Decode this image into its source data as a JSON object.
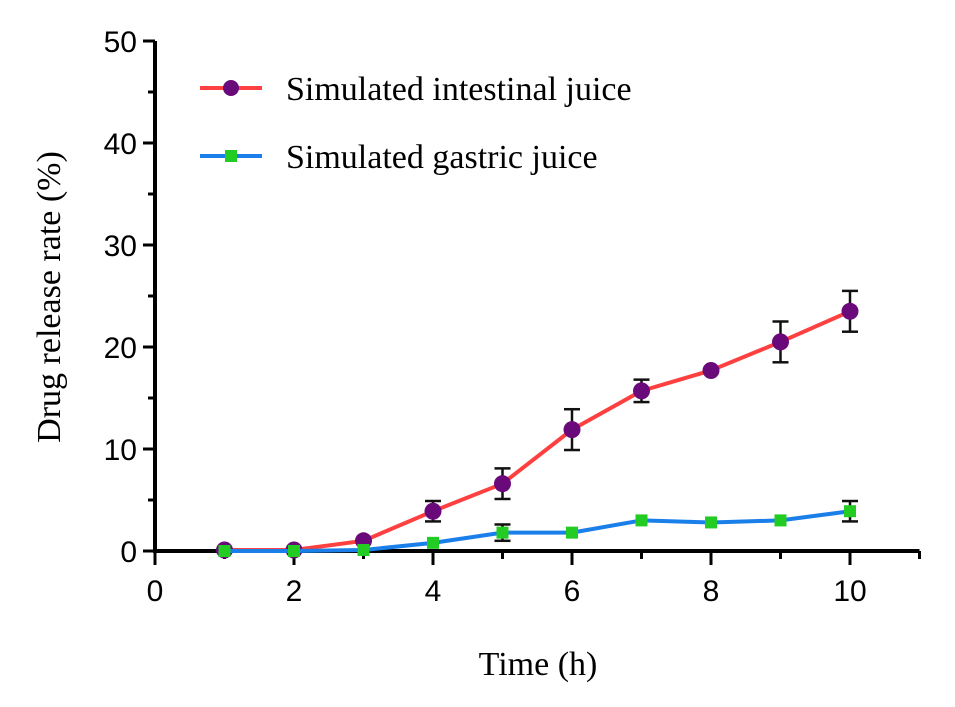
{
  "chart_data": {
    "type": "line",
    "title": "",
    "xlabel": "Time (h)",
    "ylabel": "Drug release rate (%)",
    "xlim": [
      0,
      11
    ],
    "ylim": [
      0,
      50
    ],
    "xticks": [
      "0",
      "2",
      "4",
      "6",
      "8",
      "10"
    ],
    "yticks": [
      "0",
      "10",
      "20",
      "30",
      "40",
      "50"
    ],
    "grid": false,
    "legend_position": "top-left",
    "x": [
      1,
      2,
      3,
      4,
      5,
      6,
      7,
      8,
      9,
      10
    ],
    "series": [
      {
        "name": "Simulated intestinal juice",
        "line_color": "#ff4040",
        "marker_color": "#6a0a7a",
        "marker": "circle",
        "values": [
          0.1,
          0.1,
          1.0,
          3.9,
          6.6,
          11.9,
          15.7,
          17.7,
          20.5,
          23.5
        ],
        "errors": [
          0,
          0,
          0.3,
          1.0,
          1.5,
          2.0,
          1.1,
          0.3,
          2.0,
          2.0
        ]
      },
      {
        "name": "Simulated gastric juice",
        "line_color": "#1a7fe8",
        "marker_color": "#22cc22",
        "marker": "square",
        "values": [
          0,
          0,
          0.1,
          0.8,
          1.8,
          1.8,
          3.0,
          2.8,
          3.0,
          3.9
        ],
        "errors": [
          0,
          0,
          0,
          0.3,
          0.8,
          0.3,
          0.3,
          0.3,
          0.4,
          1.0
        ]
      }
    ]
  }
}
